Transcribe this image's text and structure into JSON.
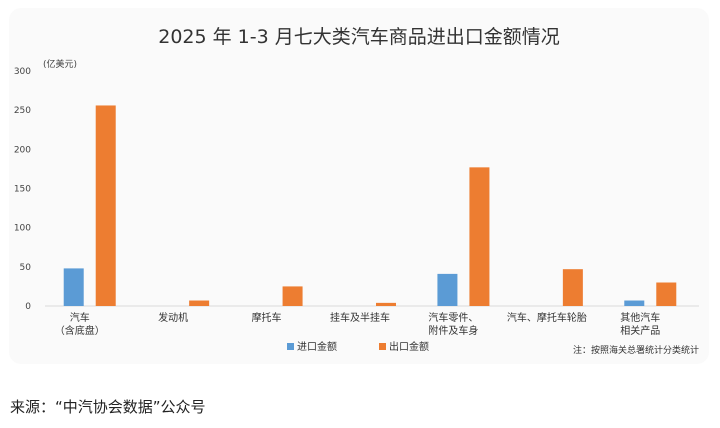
{
  "chart_data": {
    "type": "bar",
    "title": "2025 年 1-3 月七大类汽车商品进出口金额情况",
    "unit_label": "(亿美元)",
    "ylim": [
      0,
      300
    ],
    "yticks": [
      0,
      50,
      100,
      150,
      200,
      250,
      300
    ],
    "grid": false,
    "legend_position": "bottom-center",
    "categories": [
      [
        "汽车",
        "（含底盘）"
      ],
      [
        "发动机"
      ],
      [
        "摩托车"
      ],
      [
        "挂车及半挂车"
      ],
      [
        "汽车零件、",
        "附件及车身"
      ],
      [
        "汽车、摩托车轮胎"
      ],
      [
        "其他汽车",
        "相关产品"
      ]
    ],
    "series": [
      {
        "name": "进口金额",
        "color": "#5b9bd5",
        "values": [
          48,
          0,
          0,
          0,
          41,
          0,
          7
        ]
      },
      {
        "name": "出口金额",
        "color": "#ed7d31",
        "values": [
          256,
          7,
          25,
          4,
          177,
          47,
          30
        ]
      }
    ],
    "note": "注：按照海关总署统计分类统计"
  },
  "source": "来源：“中汽协会数据”公众号"
}
